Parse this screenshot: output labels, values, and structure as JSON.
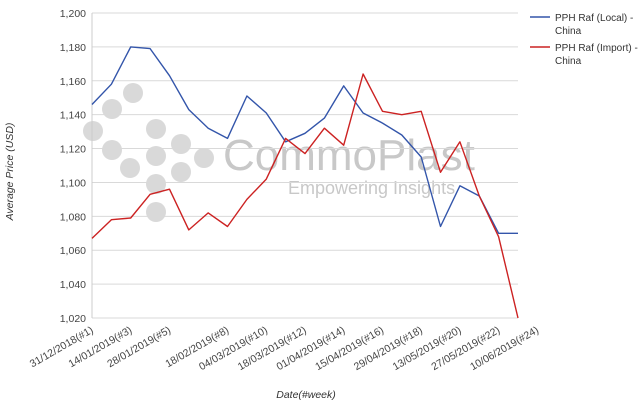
{
  "chart_data": {
    "type": "line",
    "title": "",
    "xlabel": "Date(#week)",
    "ylabel": "Average Price (USD)",
    "ylim": [
      1020,
      1200
    ],
    "yticks": [
      1020,
      1040,
      1060,
      1080,
      1100,
      1120,
      1140,
      1160,
      1180,
      1200
    ],
    "ytick_labels": [
      "1,020",
      "1,040",
      "1,060",
      "1,080",
      "1,100",
      "1,120",
      "1,140",
      "1,160",
      "1,180",
      "1,200"
    ],
    "grid": "horizontal",
    "legend_position": "right",
    "x_labels": [
      {
        "index": 0,
        "label": "31/12/2018(#1)"
      },
      {
        "index": 2,
        "label": "14/01/2019(#3)"
      },
      {
        "index": 4,
        "label": "28/01/2019(#5)"
      },
      {
        "index": 7,
        "label": "18/02/2019(#8)"
      },
      {
        "index": 9,
        "label": "04/03/2019(#10)"
      },
      {
        "index": 11,
        "label": "18/03/2019(#12)"
      },
      {
        "index": 13,
        "label": "01/04/2019(#14)"
      },
      {
        "index": 15,
        "label": "15/04/2019(#16)"
      },
      {
        "index": 17,
        "label": "29/04/2019(#18)"
      },
      {
        "index": 19,
        "label": "13/05/2019(#20)"
      },
      {
        "index": 21,
        "label": "27/05/2019(#22)"
      },
      {
        "index": 23,
        "label": "10/06/2019(#24)"
      }
    ],
    "series": [
      {
        "name": "PPH Raf (Local) - China",
        "color": "#3355aa",
        "values": [
          1146,
          1158,
          1180,
          1179,
          1163,
          1143,
          1132,
          1126,
          1151,
          1141,
          1124,
          1129,
          1138,
          1157,
          1141,
          1135,
          1128,
          1115,
          1074,
          1098,
          1092,
          1070,
          1070
        ]
      },
      {
        "name": "PPH Raf (Import) - China",
        "color": "#cc2222",
        "values": [
          1067,
          1078,
          1079,
          1093,
          1096,
          1072,
          1082,
          1074,
          1090,
          1102,
          1126,
          1117,
          1132,
          1122,
          1164,
          1142,
          1140,
          1142,
          1106,
          1124,
          1092,
          1068,
          1020
        ]
      }
    ],
    "legend_labels": [
      [
        "PPH Raf (Local) -",
        "China"
      ],
      [
        "PPH Raf (Import) -",
        "China"
      ]
    ]
  },
  "watermark": {
    "brand": "CommoPlast",
    "tagline": "Empowering Insights"
  }
}
